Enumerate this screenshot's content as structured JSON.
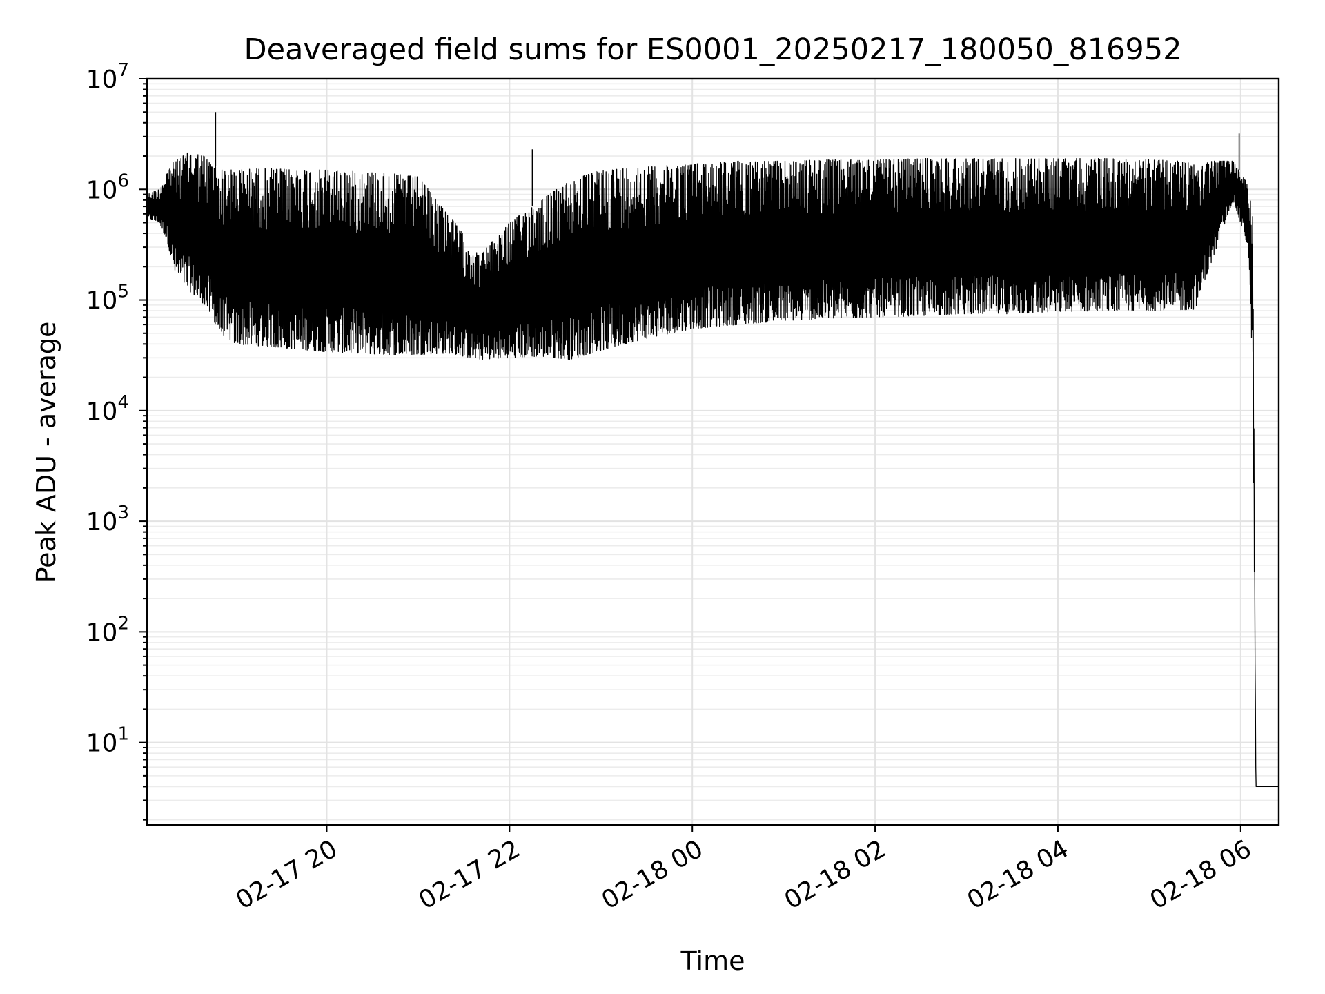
{
  "chart_data": {
    "type": "line",
    "title": "Deaveraged field sums for ES0001_20250217_180050_816952",
    "xlabel": "Time",
    "ylabel": "Peak ADU - average",
    "yscale": "log",
    "ylim": [
      1.8,
      10000000
    ],
    "xlim": [
      "2025-02-17 18:02",
      "2025-02-18 06:25"
    ],
    "grid": true,
    "x_ticks": [
      "02-17 20",
      "02-17 22",
      "02-18 00",
      "02-18 02",
      "02-18 04",
      "02-18 06"
    ],
    "y_ticks": [
      10,
      100,
      1000,
      10000,
      100000,
      1000000,
      10000000
    ],
    "y_tick_labels": [
      {
        "base": "10",
        "exp": "1"
      },
      {
        "base": "10",
        "exp": "2"
      },
      {
        "base": "10",
        "exp": "3"
      },
      {
        "base": "10",
        "exp": "4"
      },
      {
        "base": "10",
        "exp": "5"
      },
      {
        "base": "10",
        "exp": "6"
      },
      {
        "base": "10",
        "exp": "7"
      }
    ],
    "series": [
      {
        "color": "#000000",
        "x": [
          "2025-02-17 18:02",
          "2025-02-17 18:10",
          "2025-02-17 18:15",
          "2025-02-17 18:20",
          "2025-02-17 18:30",
          "2025-02-17 18:40",
          "2025-02-17 18:50",
          "2025-02-17 19:00",
          "2025-02-17 19:20",
          "2025-02-17 19:40",
          "2025-02-17 20:00",
          "2025-02-17 20:20",
          "2025-02-17 20:40",
          "2025-02-17 21:00",
          "2025-02-17 21:20",
          "2025-02-17 21:40",
          "2025-02-17 22:00",
          "2025-02-17 22:20",
          "2025-02-17 22:40",
          "2025-02-17 23:00",
          "2025-02-17 23:30",
          "2025-02-18 00:00",
          "2025-02-18 00:30",
          "2025-02-18 01:00",
          "2025-02-18 01:30",
          "2025-02-18 02:00",
          "2025-02-18 02:30",
          "2025-02-18 03:00",
          "2025-02-18 03:30",
          "2025-02-18 04:00",
          "2025-02-18 04:30",
          "2025-02-18 05:00",
          "2025-02-18 05:30",
          "2025-02-18 05:55",
          "2025-02-18 06:05",
          "2025-02-18 06:08",
          "2025-02-18 06:10",
          "2025-02-18 06:25"
        ],
        "y_low": [
          550000,
          500000,
          350000,
          180000,
          120000,
          90000,
          50000,
          40000,
          38000,
          36000,
          34000,
          33000,
          32000,
          32000,
          33000,
          29000,
          30000,
          31000,
          29000,
          35000,
          45000,
          55000,
          60000,
          65000,
          68000,
          70000,
          72000,
          75000,
          75000,
          78000,
          80000,
          80000,
          82000,
          800000,
          300000,
          20000,
          4,
          4
        ],
        "y_high": [
          900000,
          1000000,
          1500000,
          1800000,
          2200000,
          2000000,
          1500000,
          1500000,
          1550000,
          1500000,
          1500000,
          1450000,
          1400000,
          1300000,
          600000,
          250000,
          500000,
          800000,
          1200000,
          1500000,
          1600000,
          1700000,
          1800000,
          1800000,
          1850000,
          1850000,
          1900000,
          1900000,
          1900000,
          1900000,
          1900000,
          1850000,
          1800000,
          1800000,
          1100000,
          600000,
          4,
          4
        ]
      }
    ],
    "spikes": [
      {
        "x": "2025-02-17 18:47",
        "y": 5000000
      },
      {
        "x": "2025-02-17 22:15",
        "y": 2300000
      },
      {
        "x": "2025-02-18 05:59",
        "y": 3200000
      }
    ]
  }
}
